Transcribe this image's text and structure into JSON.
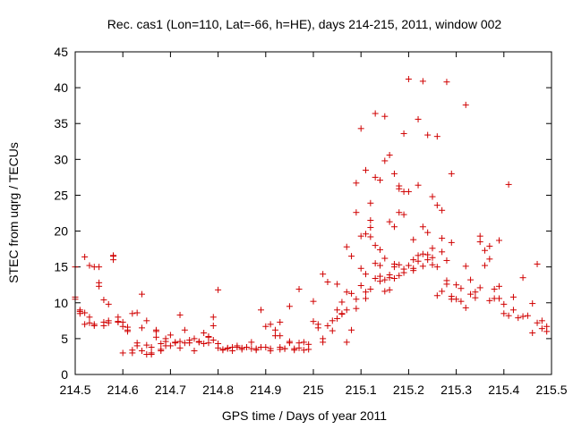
{
  "chart_data": {
    "type": "scatter",
    "title": "Rec. cas1 (Lon=110, Lat=-66, h=HE), days 214-215, 2011, window 002",
    "xlabel": "GPS time / Days of year 2011",
    "ylabel": "STEC from uqrg / TECUs",
    "xlim": [
      214.5,
      215.5
    ],
    "ylim": [
      0,
      45
    ],
    "xticks": [
      "214.5",
      "214.6",
      "214.7",
      "214.8",
      "214.9",
      "215",
      "215.1",
      "215.2",
      "215.3",
      "215.4",
      "215.5"
    ],
    "yticks": [
      "0",
      "5",
      "10",
      "15",
      "20",
      "25",
      "30",
      "35",
      "40",
      "45"
    ],
    "grid": false,
    "legend": "none",
    "marker": "plus",
    "color": "#d00000",
    "series": [
      {
        "x": [
          214.5,
          214.51,
          214.52,
          214.53,
          214.54,
          214.55,
          214.56,
          214.57,
          214.58,
          214.59,
          214.5,
          214.51,
          214.52,
          214.53,
          214.54,
          214.55,
          214.56,
          214.57,
          214.58,
          214.59,
          214.51,
          214.53,
          214.55,
          214.57,
          214.59,
          214.52,
          214.54,
          214.56,
          214.58,
          214.5,
          214.6,
          214.61,
          214.62,
          214.63,
          214.64,
          214.65,
          214.66,
          214.67,
          214.68,
          214.69,
          214.6,
          214.61,
          214.62,
          214.63,
          214.64,
          214.65,
          214.66,
          214.67,
          214.68,
          214.69,
          214.6,
          214.62,
          214.64,
          214.66,
          214.68,
          214.63,
          214.61,
          214.65,
          214.67,
          214.69,
          214.7,
          214.71,
          214.72,
          214.73,
          214.74,
          214.75,
          214.76,
          214.77,
          214.78,
          214.79,
          214.7,
          214.71,
          214.72,
          214.73,
          214.74,
          214.75,
          214.76,
          214.77,
          214.78,
          214.79,
          214.72,
          214.79,
          214.78,
          214.8,
          214.8,
          214.81,
          214.82,
          214.83,
          214.84,
          214.85,
          214.86,
          214.87,
          214.88,
          214.89,
          214.8,
          214.81,
          214.82,
          214.83,
          214.84,
          214.85,
          214.86,
          214.87,
          214.88,
          214.89,
          214.9,
          214.91,
          214.92,
          214.93,
          214.94,
          214.95,
          214.96,
          214.97,
          214.98,
          214.99,
          214.9,
          214.91,
          214.92,
          214.93,
          214.94,
          214.95,
          214.96,
          214.97,
          214.98,
          214.99,
          214.89,
          214.91,
          214.93,
          214.95,
          214.97,
          214.93,
          215.0,
          215.01,
          215.02,
          215.03,
          215.04,
          215.05,
          215.06,
          215.07,
          215.08,
          215.09,
          215.01,
          215.02,
          215.03,
          215.04,
          215.05,
          215.06,
          215.07,
          215.08,
          215.09,
          215.0,
          215.02,
          215.05,
          215.06,
          215.07,
          215.08,
          215.09,
          215.07,
          215.09,
          215.1,
          215.11,
          215.12,
          215.13,
          215.14,
          215.15,
          215.16,
          215.17,
          215.18,
          215.19,
          215.1,
          215.11,
          215.12,
          215.13,
          215.14,
          215.15,
          215.16,
          215.17,
          215.18,
          215.19,
          215.1,
          215.11,
          215.12,
          215.13,
          215.14,
          215.15,
          215.16,
          215.17,
          215.18,
          215.19,
          215.1,
          215.11,
          215.12,
          215.13,
          215.14,
          215.15,
          215.16,
          215.17,
          215.18,
          215.19,
          215.11,
          215.12,
          215.13,
          215.14,
          215.15,
          215.16,
          215.17,
          215.18,
          215.19,
          215.2,
          215.21,
          215.22,
          215.23,
          215.24,
          215.25,
          215.26,
          215.27,
          215.28,
          215.29,
          215.2,
          215.21,
          215.22,
          215.23,
          215.24,
          215.25,
          215.26,
          215.27,
          215.28,
          215.29,
          215.2,
          215.21,
          215.22,
          215.23,
          215.24,
          215.25,
          215.26,
          215.27,
          215.28,
          215.29,
          215.21,
          215.22,
          215.23,
          215.24,
          215.25,
          215.26,
          215.27,
          215.28,
          215.29,
          215.3,
          215.31,
          215.32,
          215.33,
          215.34,
          215.35,
          215.36,
          215.37,
          215.38,
          215.39,
          215.3,
          215.31,
          215.32,
          215.33,
          215.34,
          215.35,
          215.36,
          215.37,
          215.38,
          215.39,
          215.32,
          215.35,
          215.37,
          215.39,
          215.4,
          215.41,
          215.42,
          215.43,
          215.44,
          215.45,
          215.46,
          215.47,
          215.48,
          215.49,
          215.4,
          215.42,
          215.44,
          215.46,
          215.48,
          215.49,
          215.41,
          215.47
        ],
        "y": [
          10.5,
          8.8,
          16.4,
          8.0,
          15.0,
          12.8,
          10.4,
          7.5,
          16.0,
          8.0,
          15.0,
          9.0,
          7.0,
          15.2,
          7.0,
          12.3,
          7.3,
          7.2,
          16.5,
          7.4,
          8.5,
          7.2,
          15.0,
          9.8,
          7.3,
          8.6,
          6.8,
          6.8,
          16.6,
          10.8,
          6.7,
          6.2,
          3.0,
          8.6,
          3.3,
          4.1,
          2.8,
          6.0,
          3.5,
          4.0,
          7.3,
          6.6,
          8.5,
          4.4,
          11.2,
          2.8,
          3.8,
          5.2,
          3.3,
          5.0,
          3.0,
          3.4,
          6.5,
          3.0,
          4.3,
          4.0,
          6.0,
          7.5,
          6.2,
          4.6,
          5.5,
          4.4,
          4.6,
          4.4,
          4.4,
          5.0,
          4.5,
          5.8,
          5.2,
          4.8,
          4.0,
          4.5,
          8.3,
          6.2,
          4.8,
          3.3,
          4.6,
          4.3,
          5.3,
          6.8,
          3.7,
          8.0,
          4.4,
          11.8,
          4.3,
          3.5,
          3.7,
          3.3,
          3.8,
          3.7,
          3.8,
          3.6,
          3.4,
          3.8,
          3.7,
          3.4,
          3.6,
          3.8,
          4.0,
          3.5,
          3.8,
          4.5,
          3.6,
          3.8,
          3.8,
          3.6,
          5.4,
          3.5,
          3.6,
          4.6,
          3.4,
          3.7,
          3.4,
          4.2,
          6.7,
          3.3,
          6.2,
          3.8,
          3.6,
          4.4,
          3.6,
          4.4,
          4.5,
          3.5,
          9.0,
          7.0,
          7.3,
          9.5,
          11.9,
          5.4,
          10.2,
          7.0,
          14.0,
          6.8,
          6.1,
          7.8,
          8.5,
          4.5,
          6.2,
          9.2,
          6.5,
          5.0,
          12.9,
          7.5,
          12.6,
          10.1,
          17.8,
          16.5,
          22.6,
          7.4,
          4.5,
          9.0,
          8.4,
          11.5,
          11.3,
          26.7,
          9.0,
          10.5,
          34.3,
          28.5,
          23.9,
          27.5,
          27.1,
          29.8,
          30.6,
          28.0,
          22.6,
          22.3,
          19.3,
          19.6,
          20.5,
          18.0,
          17.4,
          36.0,
          21.3,
          20.6,
          25.9,
          25.5,
          14.8,
          14.0,
          19.2,
          15.5,
          15.2,
          16.2,
          13.5,
          15.0,
          15.3,
          33.6,
          12.4,
          10.6,
          11.9,
          13.4,
          13.0,
          13.2,
          13.9,
          13.4,
          13.8,
          14.2,
          11.5,
          21.5,
          36.4,
          13.7,
          11.6,
          11.8,
          15.4,
          26.3,
          14.7,
          41.2,
          16.0,
          35.6,
          40.9,
          16.7,
          16.3,
          33.2,
          17.1,
          40.8,
          18.4,
          25.5,
          18.8,
          26.4,
          20.6,
          33.4,
          17.6,
          23.6,
          22.9,
          15.9,
          28.0,
          15.2,
          14.8,
          16.6,
          16.8,
          16.0,
          15.3,
          15.0,
          11.6,
          12.6,
          10.5,
          14.5,
          15.8,
          15.1,
          19.8,
          24.8,
          11.0,
          19.0,
          13.1,
          10.9,
          12.5,
          10.2,
          37.6,
          13.2,
          10.7,
          18.5,
          15.2,
          17.9,
          10.6,
          12.3,
          10.5,
          12.0,
          15.1,
          11.2,
          11.5,
          19.3,
          17.3,
          10.3,
          11.9,
          18.7,
          9.3,
          12.1,
          16.1,
          10.6,
          8.5,
          8.2,
          10.8,
          7.9,
          13.5,
          8.2,
          5.8,
          7.2,
          7.5,
          6.7,
          9.8,
          9.0,
          8.1,
          9.9,
          6.4,
          6.0,
          26.5,
          15.4
        ]
      }
    ]
  }
}
